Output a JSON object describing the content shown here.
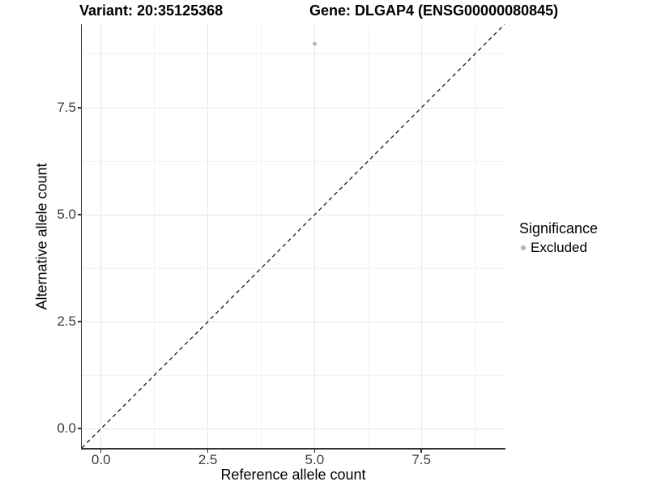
{
  "title": {
    "variant": "Variant: 20:35125368",
    "gene": "Gene: DLGAP4 (ENSG00000080845)"
  },
  "axes": {
    "x": {
      "label": "Reference allele count",
      "tick_labels": [
        "0.0",
        "2.5",
        "5.0",
        "7.5"
      ]
    },
    "y": {
      "label": "Alternative allele count",
      "tick_labels": [
        "0.0",
        "2.5",
        "5.0",
        "7.5"
      ]
    }
  },
  "legend": {
    "title": "Significance",
    "items": [
      {
        "label": "Excluded",
        "color": "#b3b3b3"
      }
    ]
  },
  "colors": {
    "background": "#ffffff",
    "axis_line": "#333333",
    "tick_text": "#3d3d3d",
    "grid_major": "#e7e7e7",
    "grid_minor": "#f3f3f3",
    "reference_line": "#1a1a1a",
    "point": "#b3b3b3"
  },
  "chart_data": {
    "type": "scatter",
    "title": "Variant: 20:35125368    Gene: DLGAP4 (ENSG00000080845)",
    "xlabel": "Reference allele count",
    "ylabel": "Alternative allele count",
    "xlim": [
      -0.45,
      9.45
    ],
    "ylim": [
      -0.45,
      9.45
    ],
    "x_ticks": [
      0,
      2.5,
      5,
      7.5
    ],
    "y_ticks": [
      0,
      2.5,
      5,
      7.5
    ],
    "x_minor_gridlines": [
      1.25,
      3.75,
      6.25,
      8.75
    ],
    "y_minor_gridlines": [
      1.25,
      3.75,
      6.25,
      8.75
    ],
    "grid": true,
    "legend_position": "right",
    "legend_title": "Significance",
    "series": [
      {
        "name": "Excluded",
        "color": "#b3b3b3",
        "points": [
          [
            5,
            9
          ]
        ]
      }
    ],
    "reference_line": {
      "kind": "identity y=x",
      "style": "dashed",
      "color": "#1a1a1a"
    }
  }
}
